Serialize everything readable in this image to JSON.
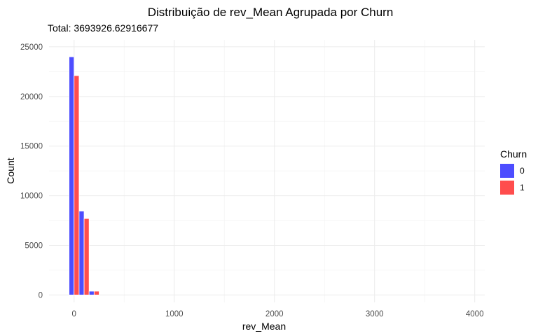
{
  "chart_data": {
    "type": "bar",
    "title": "Distribuição de rev_Mean Agrupada por Churn",
    "subtitle": "Total: 3693926.62916677",
    "xlabel": "rev_Mean",
    "ylabel": "Count",
    "xlim": [
      -250,
      4100
    ],
    "ylim": [
      -750,
      25700
    ],
    "x_ticks": [
      0,
      1000,
      2000,
      3000,
      4000
    ],
    "y_ticks": [
      0,
      5000,
      10000,
      15000,
      20000,
      25000
    ],
    "bin_width": 100,
    "bins": [
      0,
      100,
      200,
      300,
      400,
      500,
      600,
      700,
      800,
      900,
      1000,
      1100,
      1200,
      1300,
      1400,
      1500,
      1600,
      1700,
      1800,
      1900,
      2000,
      2100,
      2200,
      2300,
      2400,
      2500,
      2600,
      2700,
      2800,
      2900,
      3000,
      3100,
      3200,
      3300,
      3400,
      3500,
      3600,
      3700,
      3800,
      3900
    ],
    "grid": true,
    "legend": {
      "title": "Churn",
      "position": "right"
    },
    "series": [
      {
        "name": "0",
        "color": "#4d4dff",
        "values": [
          24000,
          8450,
          380,
          0,
          0,
          0,
          0,
          0,
          0,
          0,
          0,
          0,
          0,
          0,
          0,
          0,
          0,
          0,
          0,
          0,
          0,
          0,
          0,
          0,
          0,
          0,
          0,
          0,
          0,
          0,
          0,
          0,
          0,
          0,
          0,
          0,
          0,
          0,
          0,
          0
        ]
      },
      {
        "name": "1",
        "color": "#ff4d4d",
        "values": [
          22100,
          7700,
          380,
          0,
          0,
          0,
          0,
          0,
          0,
          0,
          0,
          0,
          0,
          0,
          0,
          0,
          0,
          0,
          0,
          0,
          0,
          0,
          0,
          0,
          0,
          0,
          0,
          0,
          0,
          0,
          0,
          0,
          0,
          0,
          0,
          0,
          0,
          0,
          0,
          0
        ]
      }
    ]
  }
}
